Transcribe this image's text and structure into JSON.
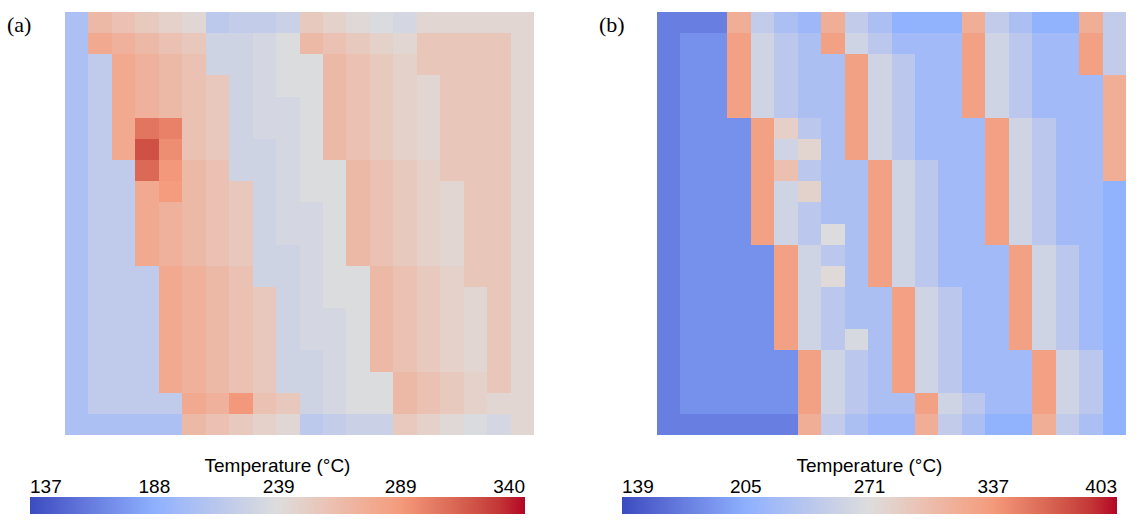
{
  "chart_data": [
    {
      "type": "heatmap",
      "label": "(a)",
      "colorbar": {
        "title": "Temperature (°C)",
        "range": [
          137,
          340
        ],
        "ticks": [
          137,
          188,
          239,
          289,
          340
        ]
      },
      "cells": [
        [
          206,
          266,
          260,
          254,
          248,
          243,
          216,
          220,
          220,
          225,
          254,
          248,
          242,
          236,
          232,
          244,
          244,
          244,
          244,
          244
        ],
        [
          206,
          278,
          272,
          266,
          260,
          255,
          228,
          228,
          232,
          237,
          266,
          260,
          254,
          248,
          244,
          256,
          256,
          256,
          256,
          244
        ],
        [
          206,
          218,
          278,
          272,
          266,
          260,
          228,
          228,
          232,
          237,
          237,
          266,
          260,
          254,
          248,
          256,
          256,
          256,
          256,
          244
        ],
        [
          206,
          218,
          278,
          272,
          266,
          260,
          255,
          228,
          232,
          237,
          237,
          266,
          260,
          254,
          248,
          244,
          256,
          256,
          256,
          244
        ],
        [
          206,
          218,
          278,
          272,
          266,
          260,
          255,
          228,
          232,
          232,
          237,
          266,
          260,
          254,
          248,
          244,
          256,
          256,
          256,
          244
        ],
        [
          206,
          218,
          278,
          305,
          300,
          260,
          255,
          228,
          232,
          232,
          237,
          266,
          260,
          254,
          248,
          244,
          256,
          256,
          256,
          244
        ],
        [
          206,
          218,
          278,
          320,
          295,
          260,
          255,
          228,
          228,
          232,
          237,
          266,
          260,
          254,
          248,
          244,
          256,
          256,
          256,
          244
        ],
        [
          206,
          218,
          218,
          310,
          290,
          266,
          260,
          228,
          228,
          232,
          237,
          237,
          266,
          260,
          254,
          248,
          256,
          256,
          256,
          244
        ],
        [
          206,
          218,
          218,
          278,
          288,
          266,
          260,
          255,
          228,
          232,
          237,
          237,
          266,
          260,
          254,
          248,
          244,
          256,
          256,
          244
        ],
        [
          206,
          218,
          218,
          278,
          272,
          266,
          260,
          255,
          228,
          232,
          232,
          237,
          266,
          260,
          254,
          248,
          244,
          256,
          256,
          244
        ],
        [
          206,
          218,
          218,
          278,
          272,
          266,
          260,
          255,
          228,
          232,
          232,
          237,
          266,
          260,
          254,
          248,
          244,
          256,
          256,
          244
        ],
        [
          206,
          218,
          218,
          278,
          272,
          266,
          260,
          255,
          228,
          228,
          232,
          237,
          266,
          260,
          254,
          248,
          244,
          256,
          256,
          244
        ],
        [
          206,
          218,
          218,
          218,
          278,
          272,
          266,
          260,
          228,
          228,
          232,
          237,
          237,
          266,
          260,
          254,
          248,
          256,
          256,
          244
        ],
        [
          206,
          218,
          218,
          218,
          278,
          272,
          266,
          260,
          255,
          228,
          232,
          237,
          237,
          266,
          260,
          254,
          248,
          244,
          256,
          244
        ],
        [
          206,
          218,
          218,
          218,
          278,
          272,
          266,
          260,
          255,
          228,
          232,
          232,
          237,
          266,
          260,
          254,
          248,
          244,
          256,
          244
        ],
        [
          206,
          218,
          218,
          218,
          278,
          272,
          266,
          260,
          255,
          228,
          232,
          232,
          237,
          266,
          260,
          254,
          248,
          244,
          256,
          244
        ],
        [
          206,
          218,
          218,
          218,
          278,
          272,
          266,
          260,
          255,
          228,
          228,
          232,
          237,
          266,
          260,
          254,
          248,
          244,
          256,
          244
        ],
        [
          206,
          218,
          218,
          218,
          278,
          272,
          266,
          260,
          255,
          228,
          228,
          232,
          237,
          237,
          266,
          260,
          254,
          248,
          256,
          244
        ],
        [
          206,
          218,
          218,
          218,
          218,
          278,
          272,
          290,
          260,
          255,
          228,
          232,
          237,
          237,
          266,
          260,
          254,
          248,
          244,
          244
        ],
        [
          206,
          206,
          206,
          206,
          206,
          266,
          260,
          254,
          248,
          243,
          216,
          220,
          225,
          225,
          254,
          248,
          242,
          236,
          232,
          244
        ]
      ]
    },
    {
      "type": "heatmap",
      "label": "(b)",
      "colorbar": {
        "title": "Temperature (°C)",
        "range": [
          139,
          403
        ],
        "ticks": [
          139,
          205,
          271,
          337,
          403
        ]
      },
      "cells": [
        [
          173,
          173,
          173,
          318,
          246,
          228,
          216,
          318,
          246,
          228,
          208,
          208,
          208,
          318,
          246,
          228,
          208,
          208,
          318,
          246
        ],
        [
          173,
          185,
          185,
          330,
          258,
          240,
          228,
          330,
          258,
          240,
          220,
          220,
          220,
          330,
          258,
          240,
          220,
          220,
          330,
          246
        ],
        [
          173,
          185,
          185,
          330,
          258,
          240,
          228,
          228,
          330,
          258,
          240,
          220,
          220,
          330,
          258,
          240,
          220,
          220,
          330,
          246
        ],
        [
          173,
          185,
          185,
          330,
          258,
          240,
          228,
          228,
          330,
          258,
          240,
          220,
          220,
          330,
          258,
          240,
          220,
          220,
          220,
          318
        ],
        [
          173,
          185,
          185,
          330,
          258,
          240,
          228,
          228,
          330,
          258,
          240,
          220,
          220,
          330,
          258,
          240,
          220,
          220,
          220,
          318
        ],
        [
          173,
          185,
          185,
          185,
          330,
          285,
          240,
          228,
          330,
          258,
          240,
          220,
          220,
          220,
          330,
          258,
          240,
          220,
          220,
          318
        ],
        [
          173,
          185,
          185,
          185,
          330,
          258,
          280,
          228,
          330,
          258,
          240,
          220,
          220,
          220,
          330,
          258,
          240,
          220,
          220,
          318
        ],
        [
          173,
          185,
          185,
          185,
          330,
          300,
          240,
          228,
          228,
          330,
          258,
          240,
          220,
          220,
          330,
          258,
          240,
          220,
          220,
          318
        ],
        [
          173,
          185,
          185,
          185,
          330,
          258,
          282,
          228,
          228,
          330,
          258,
          240,
          220,
          220,
          330,
          258,
          240,
          220,
          220,
          208
        ],
        [
          173,
          185,
          185,
          185,
          330,
          258,
          240,
          228,
          228,
          330,
          258,
          240,
          220,
          220,
          330,
          258,
          240,
          220,
          220,
          208
        ],
        [
          173,
          185,
          185,
          185,
          330,
          258,
          240,
          270,
          228,
          330,
          258,
          240,
          220,
          220,
          330,
          258,
          240,
          220,
          220,
          208
        ],
        [
          173,
          185,
          185,
          185,
          185,
          330,
          258,
          240,
          228,
          330,
          258,
          240,
          220,
          220,
          220,
          330,
          258,
          240,
          220,
          208
        ],
        [
          173,
          185,
          185,
          185,
          185,
          330,
          258,
          275,
          228,
          330,
          258,
          240,
          220,
          220,
          220,
          330,
          258,
          240,
          220,
          208
        ],
        [
          173,
          185,
          185,
          185,
          185,
          330,
          258,
          240,
          228,
          228,
          330,
          258,
          240,
          220,
          220,
          330,
          258,
          240,
          220,
          208
        ],
        [
          173,
          185,
          185,
          185,
          185,
          330,
          258,
          240,
          228,
          228,
          330,
          258,
          240,
          220,
          220,
          330,
          258,
          240,
          220,
          208
        ],
        [
          173,
          185,
          185,
          185,
          185,
          330,
          258,
          240,
          265,
          228,
          330,
          258,
          240,
          220,
          220,
          330,
          258,
          240,
          220,
          208
        ],
        [
          173,
          185,
          185,
          185,
          185,
          185,
          330,
          258,
          240,
          228,
          330,
          258,
          240,
          220,
          220,
          220,
          330,
          258,
          240,
          208
        ],
        [
          173,
          185,
          185,
          185,
          185,
          185,
          330,
          258,
          240,
          228,
          330,
          258,
          240,
          220,
          220,
          220,
          330,
          258,
          240,
          208
        ],
        [
          173,
          185,
          185,
          185,
          185,
          185,
          330,
          258,
          240,
          228,
          228,
          330,
          258,
          240,
          220,
          220,
          330,
          258,
          240,
          208
        ],
        [
          173,
          173,
          173,
          173,
          173,
          173,
          318,
          246,
          228,
          216,
          216,
          318,
          246,
          228,
          208,
          208,
          318,
          246,
          228,
          208
        ]
      ]
    }
  ]
}
